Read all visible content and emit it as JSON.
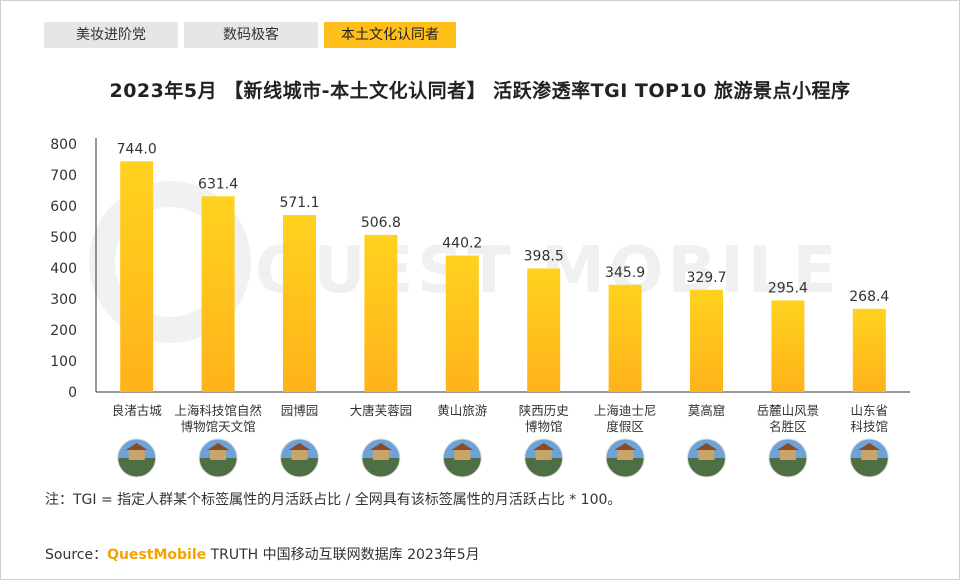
{
  "tabs": [
    {
      "label": "美妆进阶党",
      "active": false
    },
    {
      "label": "数码极客",
      "active": false
    },
    {
      "label": "本土文化认同者",
      "active": true
    }
  ],
  "title": "2023年5月 【新线城市-本土文化认同者】 活跃渗透率TGI TOP10 旅游景点小程序",
  "watermark": "QUEST MOBILE",
  "note": "注：TGI = 指定人群某个标签属性的月活跃占比 / 全网具有该标签属性的月活跃占比 * 100。",
  "source": {
    "prefix": "Source：",
    "brand": "QuestMobile",
    "rest": " TRUTH 中国移动互联网数据库 2023年5月"
  },
  "colors": {
    "bar_top": "#ffd21f",
    "bar_bottom": "#ffb21a",
    "accent": "#ffbf1a"
  },
  "chart_data": {
    "type": "bar",
    "categories": [
      [
        "良渚古城"
      ],
      [
        "上海科技馆自然",
        "博物馆天文馆"
      ],
      [
        "园博园"
      ],
      [
        "大唐芙蓉园"
      ],
      [
        "黄山旅游"
      ],
      [
        "陕西历史",
        "博物馆"
      ],
      [
        "上海迪士尼",
        "度假区"
      ],
      [
        "莫高窟"
      ],
      [
        "岳麓山风景",
        "名胜区"
      ],
      [
        "山东省",
        "科技馆"
      ]
    ],
    "values": [
      744.0,
      631.4,
      571.1,
      506.8,
      440.2,
      398.5,
      345.9,
      329.7,
      295.4,
      268.4
    ],
    "value_labels": [
      "744.0",
      "631.4",
      "571.1",
      "506.8",
      "440.2",
      "398.5",
      "345.9",
      "329.7",
      "295.4",
      "268.4"
    ],
    "ylim": [
      0,
      800
    ],
    "yticks": [
      0,
      100,
      200,
      300,
      400,
      500,
      600,
      700,
      800
    ],
    "icons": [
      "palace-gate-icon",
      "museum-dome-icon",
      "bridge-arch-icon",
      "pagoda-icon",
      "mountain-pine-icon",
      "museum-hall-icon",
      "castle-icon",
      "cave-temple-icon",
      "autumn-pavilion-icon",
      "science-museum-icon"
    ]
  }
}
